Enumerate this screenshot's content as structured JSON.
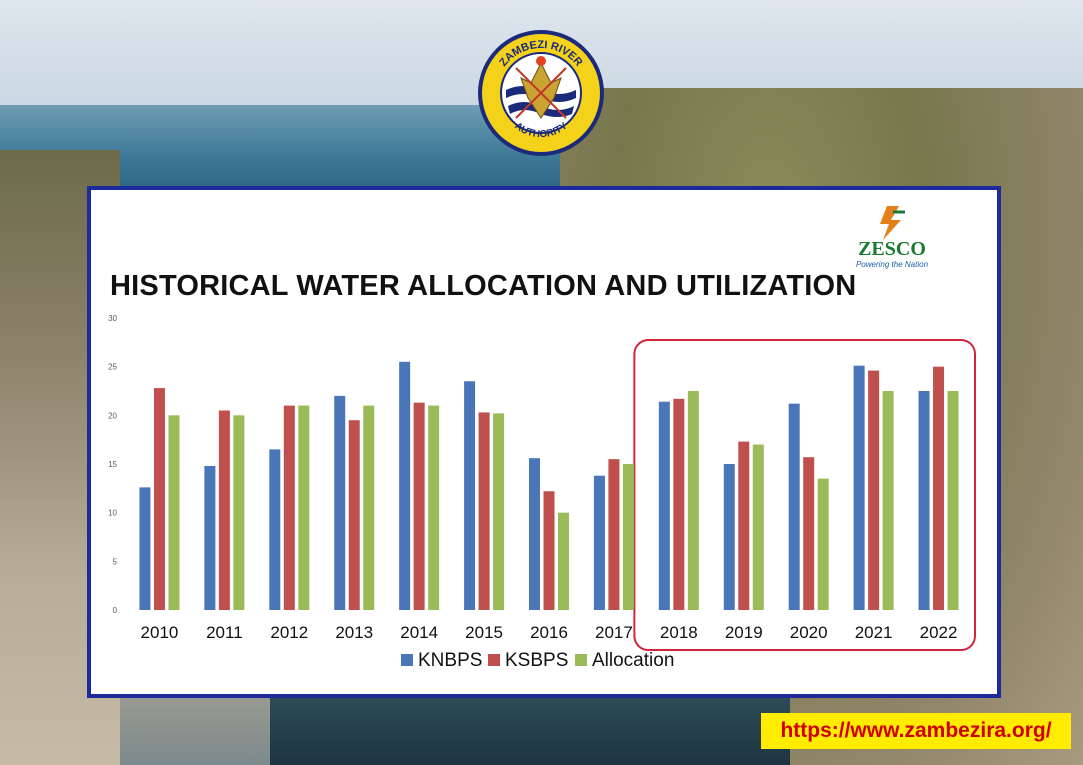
{
  "logos": {
    "zra_top": "ZAMBEZI RIVER",
    "zra_bottom": "AUTHORITY",
    "zesco_name": "ZESCO",
    "zesco_tagline": "Powering the Nation"
  },
  "colors": {
    "panel_border": "#1c2a9c",
    "highlight_box": "#d0253a",
    "url_background": "#ffec00",
    "url_text": "#d10000"
  },
  "footer": {
    "url": "https://www.zambezira.org/"
  },
  "chart_data": {
    "type": "bar",
    "title": "HISTORICAL WATER ALLOCATION AND UTILIZATION",
    "categories": [
      "2010",
      "2011",
      "2012",
      "2013",
      "2014",
      "2015",
      "2016",
      "2017",
      "2018",
      "2019",
      "2020",
      "2021",
      "2022"
    ],
    "series": [
      {
        "name": "KNBPS",
        "color": "#4a76b8",
        "values": [
          12.6,
          14.8,
          16.5,
          22.0,
          25.5,
          23.5,
          15.6,
          13.8,
          21.4,
          15.0,
          21.2,
          25.1,
          22.5
        ]
      },
      {
        "name": "KSBPS",
        "color": "#c0504d",
        "values": [
          22.8,
          20.5,
          21.0,
          19.5,
          21.3,
          20.3,
          12.2,
          15.5,
          21.7,
          17.3,
          15.7,
          24.6,
          25.0
        ]
      },
      {
        "name": "Allocation",
        "color": "#9bbb59",
        "values": [
          20.0,
          20.0,
          21.0,
          21.0,
          21.0,
          20.2,
          10.0,
          15.0,
          22.5,
          17.0,
          13.5,
          22.5,
          22.5
        ]
      }
    ],
    "ylim": [
      0,
      30
    ],
    "yticks": [
      "0",
      "5",
      "10",
      "15",
      "20",
      "25",
      "30"
    ],
    "grid": false,
    "legend": "bottom",
    "highlight_categories": [
      "2018",
      "2019",
      "2020",
      "2021",
      "2022"
    ]
  }
}
